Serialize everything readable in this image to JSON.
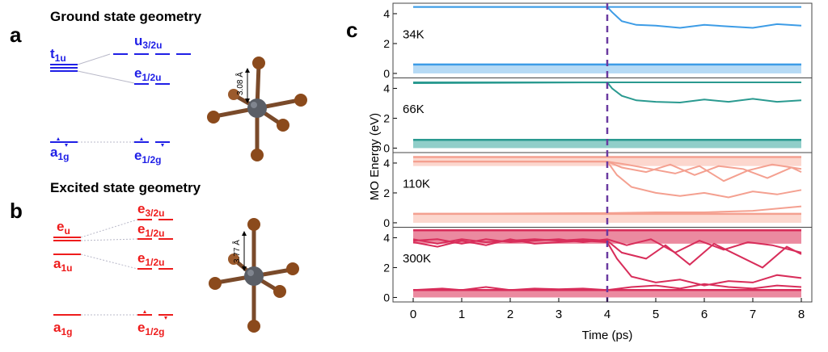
{
  "panel_a": {
    "letter": "a",
    "title": "Ground state geometry",
    "levels": {
      "t1u": {
        "base": "t",
        "sub": "1u"
      },
      "u32u": {
        "base": "u",
        "sub": "3/2u"
      },
      "e12u": {
        "base": "e",
        "sub": "1/2u"
      },
      "a1g": {
        "base": "a",
        "sub": "1g"
      },
      "e12g": {
        "base": "e",
        "sub": "1/2g"
      }
    },
    "bond_label": "3.08 Å",
    "color": "#1f1fe6"
  },
  "panel_b": {
    "letter": "b",
    "title": "Excited state geometry",
    "levels": {
      "eu": {
        "base": "e",
        "sub": "u"
      },
      "a1u": {
        "base": "a",
        "sub": "1u"
      },
      "e32u": {
        "base": "e",
        "sub": "3/2u"
      },
      "e12u_upper": {
        "base": "e",
        "sub": "1/2u"
      },
      "e12u_lower": {
        "base": "e",
        "sub": "1/2u"
      },
      "a1g": {
        "base": "a",
        "sub": "1g"
      },
      "e12g": {
        "base": "e",
        "sub": "1/2g"
      }
    },
    "bond_label": "3.77 Å",
    "color": "#ee1c1c"
  },
  "panel_c": {
    "letter": "c",
    "ylabel": "MO Energy (eV)",
    "xlabel": "Time (ps)"
  },
  "chart_data": {
    "type": "line",
    "x_range": [
      0,
      8
    ],
    "x_ticks": [
      "0",
      "1",
      "2",
      "3",
      "4",
      "5",
      "6",
      "7",
      "8"
    ],
    "y_range": [
      -0.3,
      4.7
    ],
    "y_ticks": [
      "0",
      "2",
      "4"
    ],
    "excitation_time": 4,
    "subplots": [
      {
        "label": "34K",
        "color": "#3d9ce6",
        "fill_color": "#a9d3f3",
        "band_low": [
          0,
          0.6
        ],
        "band_high": null,
        "series": [
          {
            "x": [
              0,
              4,
              4.1,
              4.3,
              4.6,
              5,
              5.5,
              6,
              6.5,
              7,
              7.5,
              8
            ],
            "y": [
              4.45,
              4.45,
              4.1,
              3.5,
              3.25,
              3.2,
              3.05,
              3.25,
              3.15,
              3.05,
              3.3,
              3.2
            ]
          },
          {
            "x": [
              0,
              8
            ],
            "y": [
              4.45,
              4.45
            ]
          }
        ]
      },
      {
        "label": "66K",
        "color": "#2a9a90",
        "fill_color": "#7cc5bf",
        "band_low": [
          0,
          0.55
        ],
        "band_high": null,
        "series": [
          {
            "x": [
              0,
              4,
              4.1,
              4.3,
              4.6,
              5,
              5.5,
              6,
              6.5,
              7,
              7.5,
              8
            ],
            "y": [
              4.35,
              4.4,
              4.0,
              3.5,
              3.2,
              3.1,
              3.05,
              3.25,
              3.1,
              3.3,
              3.1,
              3.2
            ]
          },
          {
            "x": [
              0,
              8
            ],
            "y": [
              4.4,
              4.4
            ]
          }
        ]
      },
      {
        "label": "110K",
        "color": "#f4a090",
        "fill_color": "#fbd0c6",
        "band_low": [
          0,
          0.6
        ],
        "band_high": [
          3.8,
          4.4
        ],
        "series": [
          {
            "x": [
              0,
              4,
              4.2,
              4.5,
              5,
              5.5,
              6,
              6.5,
              7,
              7.5,
              8
            ],
            "y": [
              4.1,
              4.1,
              3.2,
              2.4,
              2.0,
              1.8,
              2.0,
              1.7,
              2.1,
              1.9,
              2.2
            ]
          },
          {
            "x": [
              0,
              4,
              4.3,
              4.8,
              5.3,
              5.8,
              6.3,
              6.8,
              7.3,
              7.8,
              8
            ],
            "y": [
              4.1,
              4.1,
              3.7,
              3.4,
              3.9,
              3.2,
              3.8,
              3.6,
              3.0,
              3.7,
              3.4
            ]
          },
          {
            "x": [
              0,
              4,
              4.4,
              4.9,
              5.4,
              5.9,
              6.4,
              6.9,
              7.4,
              8
            ],
            "y": [
              4.1,
              4.1,
              3.9,
              3.6,
              3.3,
              3.8,
              2.8,
              3.5,
              3.9,
              3.6
            ]
          },
          {
            "x": [
              0,
              4,
              5,
              6,
              7,
              8
            ],
            "y": [
              0.6,
              0.65,
              0.7,
              0.7,
              0.8,
              1.1
            ]
          }
        ]
      },
      {
        "label": "300K",
        "color": "#d82d5a",
        "fill_color": "#e8768f",
        "band_low": [
          0,
          0.5
        ],
        "band_high": [
          3.6,
          4.5
        ],
        "series": [
          {
            "x": [
              0,
              0.5,
              1,
              1.5,
              2,
              2.5,
              3,
              3.5,
              4,
              4.2,
              4.5,
              5,
              5.5,
              6,
              6.5,
              7,
              7.5,
              8
            ],
            "y": [
              3.7,
              3.4,
              3.8,
              3.5,
              3.9,
              3.6,
              3.7,
              3.8,
              3.7,
              2.6,
              1.4,
              1.0,
              1.2,
              0.8,
              1.1,
              1.0,
              1.5,
              1.3
            ]
          },
          {
            "x": [
              0,
              0.5,
              1,
              1.5,
              2,
              2.5,
              3,
              3.5,
              4,
              4.3,
              4.8,
              5.2,
              5.7,
              6.2,
              6.7,
              7.2,
              7.7,
              8
            ],
            "y": [
              3.9,
              3.6,
              3.9,
              3.7,
              3.8,
              3.9,
              3.8,
              3.9,
              3.8,
              3.0,
              2.6,
              3.5,
              2.2,
              3.6,
              2.8,
              2.0,
              3.4,
              2.9
            ]
          },
          {
            "x": [
              0,
              0.5,
              1,
              1.5,
              2,
              2.5,
              3,
              3.5,
              4,
              4.4,
              4.9,
              5.4,
              5.9,
              6.4,
              6.9,
              7.4,
              8
            ],
            "y": [
              3.8,
              3.9,
              3.6,
              3.9,
              3.7,
              3.8,
              3.9,
              3.7,
              3.9,
              3.5,
              3.9,
              3.0,
              3.8,
              3.2,
              3.7,
              3.5,
              3.0
            ]
          },
          {
            "x": [
              0,
              0.6,
              1,
              1.5,
              2,
              2.5,
              3,
              3.5,
              4,
              4.5,
              5,
              5.5,
              6,
              6.5,
              7,
              7.5,
              8
            ],
            "y": [
              0.5,
              0.6,
              0.5,
              0.7,
              0.5,
              0.6,
              0.55,
              0.6,
              0.5,
              0.7,
              0.8,
              0.6,
              0.9,
              0.7,
              0.6,
              0.8,
              0.7
            ]
          }
        ]
      }
    ]
  }
}
